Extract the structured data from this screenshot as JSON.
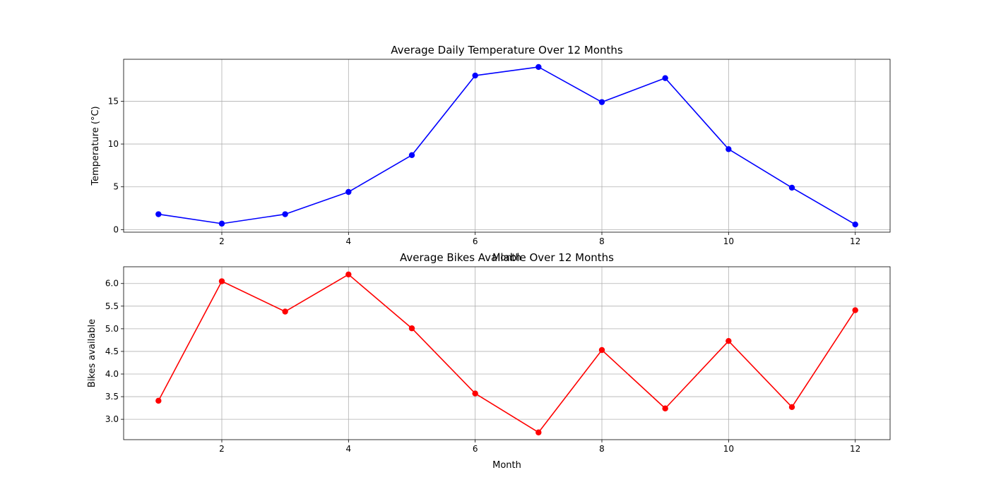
{
  "chart_data": [
    {
      "type": "line",
      "title": "Average Daily Temperature Over 12 Months",
      "xlabel": "Month",
      "ylabel": "Temperature (°C)",
      "x": [
        1,
        2,
        3,
        4,
        5,
        6,
        7,
        8,
        9,
        10,
        11,
        12
      ],
      "xlim": [
        0.45,
        12.55
      ],
      "ylim": [
        -0.3,
        19.9
      ],
      "xticks": [
        2,
        4,
        6,
        8,
        10,
        12
      ],
      "yticks": [
        0,
        5,
        10,
        15
      ],
      "ytick_labels": [
        "0",
        "5",
        "10",
        "15"
      ],
      "grid": true,
      "series": [
        {
          "color": "#0000ff",
          "marker": "circle",
          "values": [
            1.8,
            0.7,
            1.8,
            4.4,
            8.7,
            18.0,
            19.0,
            14.9,
            17.7,
            9.4,
            4.9,
            0.6
          ]
        }
      ]
    },
    {
      "type": "line",
      "title": "Average Bikes Available Over 12 Months",
      "xlabel": "Month",
      "ylabel": "Bikes available",
      "x": [
        1,
        2,
        3,
        4,
        5,
        6,
        7,
        8,
        9,
        10,
        11,
        12
      ],
      "xlim": [
        0.45,
        12.55
      ],
      "ylim": [
        2.55,
        6.37
      ],
      "xticks": [
        2,
        4,
        6,
        8,
        10,
        12
      ],
      "yticks": [
        3.0,
        3.5,
        4.0,
        4.5,
        5.0,
        5.5,
        6.0
      ],
      "ytick_labels": [
        "3.0",
        "3.5",
        "4.0",
        "4.5",
        "5.0",
        "5.5",
        "6.0"
      ],
      "grid": true,
      "series": [
        {
          "color": "#ff0000",
          "marker": "circle",
          "values": [
            3.41,
            6.05,
            5.38,
            6.2,
            5.01,
            3.57,
            2.71,
            4.53,
            3.24,
            4.73,
            3.27,
            5.41
          ]
        }
      ]
    }
  ]
}
